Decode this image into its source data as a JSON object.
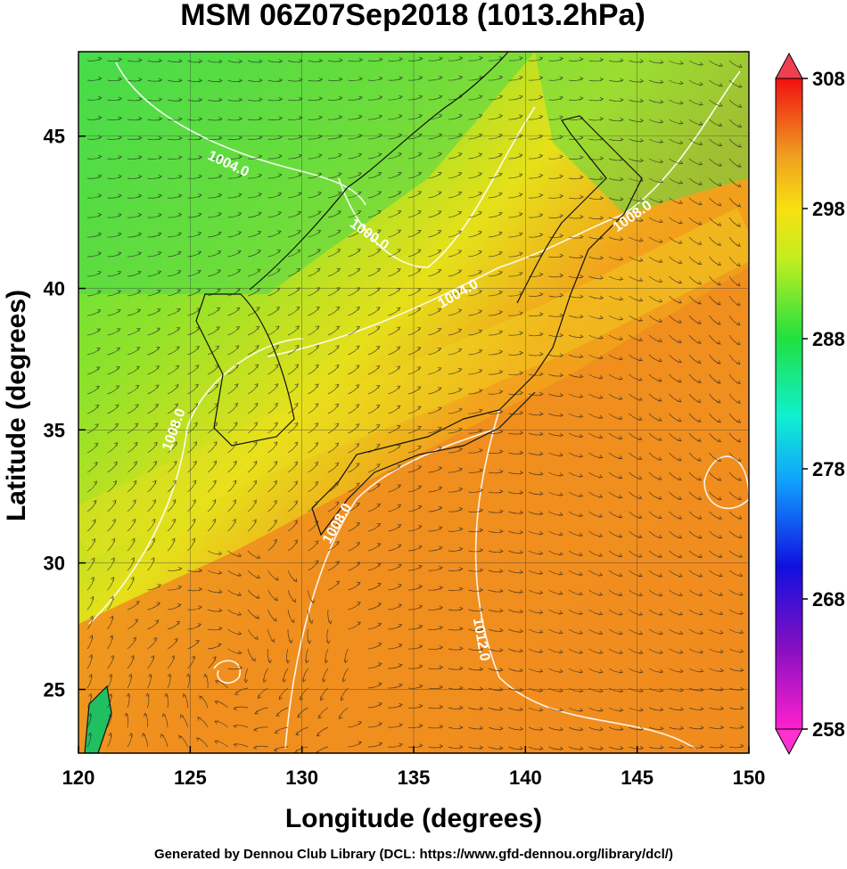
{
  "chart_data": {
    "type": "map",
    "title": "MSM 06Z07Sep2018 (1013.2hPa)",
    "x_label": "Longitude (degrees)",
    "y_label": "Latitude  (degrees)",
    "footer": "Generated by Dennou Club Library (DCL: https://www.gfd-dennou.org/library/dcl/)",
    "xlim": [
      120,
      150
    ],
    "xticks": [
      120,
      125,
      130,
      135,
      140,
      145,
      150
    ],
    "ylim": [
      22.4,
      47.6
    ],
    "yticks": [
      25,
      30,
      35,
      40,
      45
    ],
    "y_scale": "mercator",
    "grid": true,
    "colorbar": {
      "lim": [
        258,
        308
      ],
      "ticks": [
        258,
        268,
        278,
        288,
        298,
        308
      ]
    },
    "contour_labels": [
      {
        "value": 1004,
        "label": "1004.0",
        "lon": 126.7,
        "lat": 44.1
      },
      {
        "value": 1000,
        "label": "1000.0",
        "lon": 133.0,
        "lat": 41.8
      },
      {
        "value": 1004,
        "label": "1004.0",
        "lon": 137.0,
        "lat": 39.8
      },
      {
        "value": 1008,
        "label": "1008.0",
        "lon": 144.8,
        "lat": 42.4
      },
      {
        "value": 1008,
        "label": "1008.0",
        "lon": 124.3,
        "lat": 35.0
      },
      {
        "value": 1008,
        "label": "1008.0",
        "lon": 131.6,
        "lat": 31.5
      },
      {
        "value": 1012,
        "label": "1012.0",
        "lon": 138.0,
        "lat": 27.0
      }
    ]
  }
}
